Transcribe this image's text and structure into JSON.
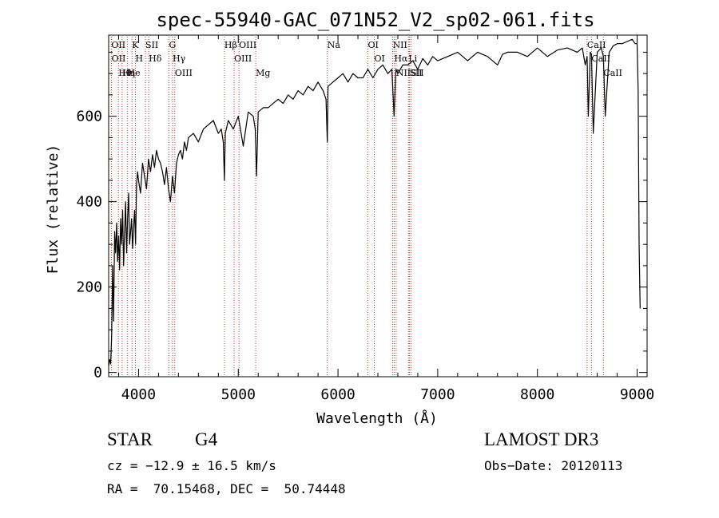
{
  "chart_data": {
    "type": "line",
    "title": "spec-55940-GAC_071N52_V2_sp02-061.fits",
    "xlabel": "Wavelength (Å)",
    "ylabel": "Flux (relative)",
    "xlim": [
      3700,
      9100
    ],
    "ylim": [
      -10,
      790
    ],
    "x_ticks": [
      4000,
      5000,
      6000,
      7000,
      8000,
      9000
    ],
    "y_ticks": [
      0,
      200,
      400,
      600
    ],
    "series": [
      {
        "name": "spectrum",
        "x": [
          3700,
          3710,
          3720,
          3730,
          3740,
          3750,
          3760,
          3770,
          3780,
          3790,
          3800,
          3810,
          3820,
          3830,
          3840,
          3850,
          3860,
          3870,
          3880,
          3890,
          3900,
          3910,
          3920,
          3930,
          3940,
          3950,
          3960,
          3970,
          3980,
          3990,
          4000,
          4020,
          4040,
          4060,
          4080,
          4100,
          4120,
          4140,
          4160,
          4180,
          4200,
          4220,
          4240,
          4260,
          4280,
          4300,
          4320,
          4340,
          4360,
          4380,
          4400,
          4420,
          4440,
          4460,
          4480,
          4500,
          4550,
          4600,
          4650,
          4700,
          4750,
          4800,
          4830,
          4850,
          4861,
          4870,
          4900,
          4950,
          5000,
          5050,
          5100,
          5150,
          5170,
          5183,
          5200,
          5250,
          5300,
          5350,
          5400,
          5450,
          5500,
          5550,
          5600,
          5650,
          5700,
          5750,
          5800,
          5850,
          5880,
          5893,
          5900,
          5950,
          6000,
          6050,
          6100,
          6150,
          6200,
          6250,
          6300,
          6350,
          6400,
          6450,
          6500,
          6540,
          6563,
          6580,
          6600,
          6650,
          6700,
          6750,
          6800,
          6850,
          6900,
          6950,
          7000,
          7100,
          7200,
          7300,
          7400,
          7500,
          7600,
          7650,
          7700,
          7800,
          7900,
          8000,
          8100,
          8200,
          8300,
          8400,
          8450,
          8480,
          8498,
          8510,
          8530,
          8542,
          8560,
          8600,
          8640,
          8662,
          8680,
          8720,
          8760,
          8800,
          8850,
          8900,
          8950,
          8980,
          9000,
          9010,
          9020,
          9030
        ],
        "values": [
          15,
          30,
          20,
          80,
          250,
          120,
          330,
          280,
          350,
          260,
          320,
          240,
          360,
          300,
          380,
          250,
          330,
          400,
          280,
          360,
          420,
          300,
          330,
          360,
          290,
          340,
          380,
          300,
          440,
          470,
          450,
          420,
          490,
          460,
          430,
          500,
          470,
          510,
          480,
          520,
          500,
          490,
          470,
          440,
          480,
          430,
          400,
          460,
          420,
          490,
          510,
          520,
          500,
          540,
          520,
          550,
          560,
          540,
          570,
          580,
          590,
          560,
          570,
          540,
          450,
          560,
          590,
          570,
          600,
          530,
          610,
          600,
          570,
          460,
          610,
          620,
          620,
          630,
          640,
          630,
          650,
          640,
          660,
          650,
          670,
          660,
          680,
          660,
          640,
          540,
          670,
          680,
          690,
          700,
          680,
          700,
          690,
          690,
          710,
          690,
          710,
          720,
          700,
          710,
          600,
          710,
          700,
          720,
          720,
          730,
          710,
          735,
          720,
          740,
          730,
          740,
          750,
          730,
          750,
          740,
          720,
          745,
          750,
          750,
          740,
          760,
          740,
          755,
          760,
          750,
          760,
          720,
          740,
          600,
          750,
          745,
          560,
          750,
          760,
          740,
          600,
          750,
          765,
          770,
          770,
          775,
          780,
          770,
          770,
          660,
          300,
          150
        ]
      }
    ],
    "emission_lines": [
      {
        "name": "Hθ",
        "wavelength": 3798
      },
      {
        "name": "OII",
        "wavelength": 3727
      },
      {
        "name": "OII",
        "wavelength": 3729
      },
      {
        "name": "He",
        "wavelength": 3889
      },
      {
        "name": "Hη",
        "wavelength": 3835
      },
      {
        "name": "K",
        "wavelength": 3934
      },
      {
        "name": "SII",
        "wavelength": 4069
      },
      {
        "name": "H",
        "wavelength": 3968
      },
      {
        "name": "Hδ",
        "wavelength": 4102
      },
      {
        "name": "OIII",
        "wavelength": 4364
      },
      {
        "name": "Hγ",
        "wavelength": 4341
      },
      {
        "name": "G",
        "wavelength": 4305
      },
      {
        "name": "Hβ",
        "wavelength": 4861
      },
      {
        "name": "OIII",
        "wavelength": 5007
      },
      {
        "name": "OIII",
        "wavelength": 4959
      },
      {
        "name": "Mg",
        "wavelength": 5175
      },
      {
        "name": "Na",
        "wavelength": 5893
      },
      {
        "name": "OI",
        "wavelength": 6300
      },
      {
        "name": "OI",
        "wavelength": 6364
      },
      {
        "name": "Hα",
        "wavelength": 6563
      },
      {
        "name": "NII",
        "wavelength": 6548
      },
      {
        "name": "NII",
        "wavelength": 6583
      },
      {
        "name": "SII",
        "wavelength": 6716
      },
      {
        "name": "SII",
        "wavelength": 6731
      },
      {
        "name": "Li",
        "wavelength": 6707
      },
      {
        "name": "CaII",
        "wavelength": 8498
      },
      {
        "name": "CaII",
        "wavelength": 8542
      },
      {
        "name": "CaII",
        "wavelength": 8662
      }
    ]
  },
  "info": {
    "class": "STAR",
    "subclass": "G4",
    "survey": "LAMOST DR3",
    "redshift": "cz = −12.9 ± 16.5 km/s",
    "obs_date": "Obs−Date: 20120113",
    "coords": "RA =  70.15468, DEC =  50.74448"
  },
  "colors": {
    "line_marker": "#c0392b",
    "spectrum": "#000000"
  }
}
